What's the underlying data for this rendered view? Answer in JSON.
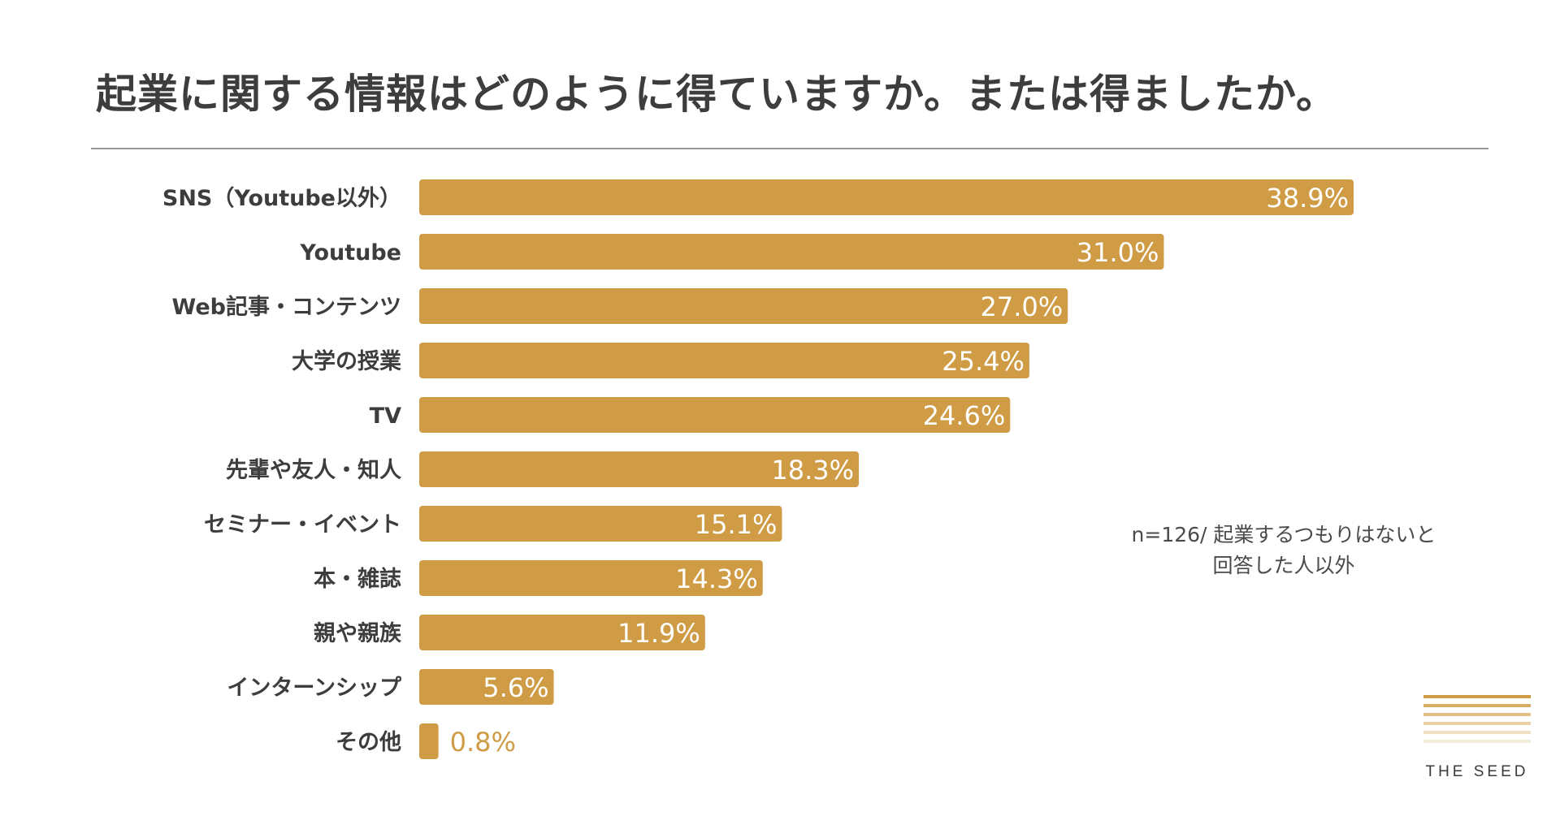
{
  "title": "起業に関する情報はどのように得ていますか。または得ましたか。",
  "note": {
    "line1": "n=126/ 起業するつもりはないと",
    "line2": "回答した人以外"
  },
  "brand": {
    "name": "THE SEED"
  },
  "colors": {
    "bar": "#CF9C45",
    "label_inside": "#ffffff",
    "label_outside": "#CF9C45",
    "category_text": "#3d3d3d",
    "logo_stripes": [
      "#CF9C45",
      "#D8AE66",
      "#E0C084",
      "#E8D1A4",
      "#EFE0C3",
      "#F5EDDC"
    ]
  },
  "chart_data": {
    "type": "bar",
    "orientation": "horizontal",
    "categories": [
      "SNS（Youtube以外）",
      "Youtube",
      "Web記事・コンテンツ",
      "大学の授業",
      "TV",
      "先輩や友人・知人",
      "セミナー・イベント",
      "本・雑誌",
      "親や親族",
      "インターンシップ",
      "その他"
    ],
    "values": [
      38.9,
      31.0,
      27.0,
      25.4,
      24.6,
      18.3,
      15.1,
      14.3,
      11.9,
      5.6,
      0.8
    ],
    "value_labels": [
      "38.9%",
      "31.0%",
      "27.0%",
      "25.4%",
      "24.6%",
      "18.3%",
      "15.1%",
      "14.3%",
      "11.9%",
      "5.6%",
      "0.8%"
    ],
    "unit": "%",
    "xlim": [
      0,
      40
    ],
    "grid": false,
    "legend": "none"
  }
}
